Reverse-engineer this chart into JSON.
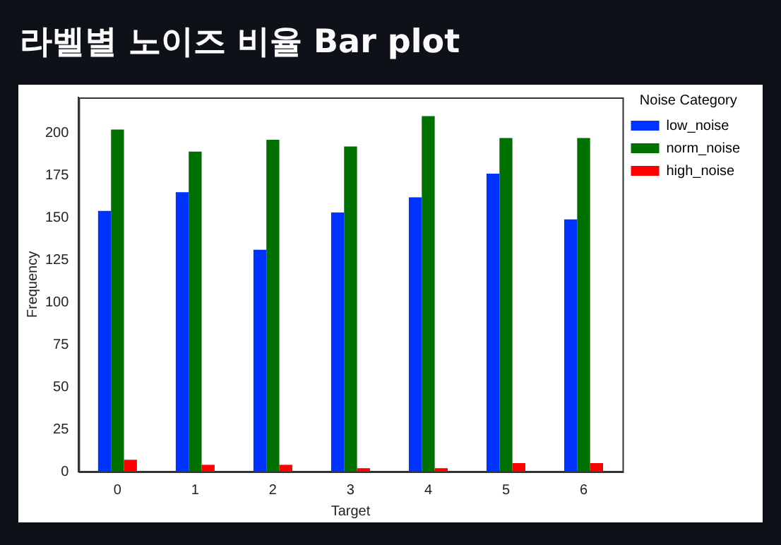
{
  "chart_data": {
    "type": "bar",
    "title": "라벨별 노이즈 비율 Bar plot",
    "xlabel": "Target",
    "ylabel": "Frequency",
    "legend_title": "Noise Category",
    "categories": [
      "0",
      "1",
      "2",
      "3",
      "4",
      "5",
      "6"
    ],
    "series": [
      {
        "name": "low_noise",
        "color": "#0033ff",
        "values": [
          154,
          165,
          131,
          153,
          162,
          176,
          149
        ]
      },
      {
        "name": "norm_noise",
        "color": "#007000",
        "values": [
          202,
          189,
          196,
          192,
          210,
          197,
          197
        ]
      },
      {
        "name": "high_noise",
        "color": "#ff0000",
        "values": [
          7,
          4,
          4,
          2,
          2,
          5,
          5
        ]
      }
    ],
    "ylim": [
      0,
      221
    ],
    "yticks": [
      0,
      25,
      50,
      75,
      100,
      125,
      150,
      175,
      200
    ],
    "grid": false,
    "legend": "top right"
  }
}
